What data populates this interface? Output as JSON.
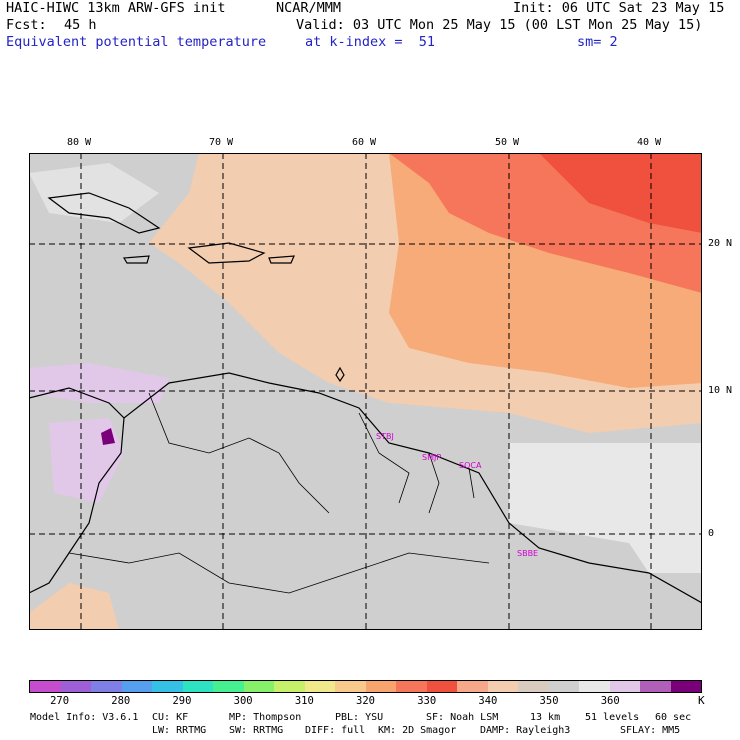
{
  "header": {
    "model": "HAIC-HIWC 13km ARW-GFS init",
    "center": "NCAR/MMM",
    "init": "Init: 06 UTC Sat 23 May 15",
    "fcst_label": "Fcst:",
    "fcst_value": "45 h",
    "valid": "Valid: 03 UTC Mon 25 May 15 (00 LST Mon 25 May 15)",
    "field": "Equivalent potential temperature",
    "level": "at k-index =  51",
    "smoothing": "sm= 2"
  },
  "axes": {
    "lon_labels": [
      "80 W",
      "70 W",
      "60 W",
      "50 W",
      "40 W"
    ],
    "lat_labels": [
      "20 N",
      "10 N",
      "0"
    ]
  },
  "stations": [
    "STBJ",
    "SMJP",
    "SOCA",
    "SBBE"
  ],
  "colorbar": {
    "colors": [
      "#c74dcf",
      "#9f5fd6",
      "#7f7fe6",
      "#569fee",
      "#35c0e6",
      "#2ee3c2",
      "#46ef8f",
      "#86f06a",
      "#c7f06a",
      "#f0e88a",
      "#f7c98a",
      "#f7a46e",
      "#f5765a",
      "#f0503e",
      "#f5a88a",
      "#f2cdb0",
      "#d8cbc0",
      "#cfcfcf",
      "#e8e8e8",
      "#e2c8e8",
      "#b060b8",
      "#7a007a"
    ],
    "labels": [
      "270",
      "280",
      "290",
      "300",
      "310",
      "320",
      "330",
      "340",
      "350",
      "360"
    ],
    "unit": "K"
  },
  "footer": {
    "line1": [
      "Model Info: V3.6.1",
      "CU: KF",
      "MP: Thompson",
      "PBL: YSU",
      "SF: Noah LSM",
      "13 km",
      "51 levels",
      "60 sec"
    ],
    "line2": [
      "LW: RRTMG",
      "SW: RRTMG",
      "DIFF: full",
      "KM: 2D Smagor",
      "DAMP: Rayleigh3",
      "SFLAY: MM5"
    ]
  },
  "colors": {
    "text_blue": "#2323c8",
    "station": "#d000d0",
    "warm": "#f5765a",
    "mid": "#f7a46e",
    "peach": "#f2cdb0",
    "gray": "#cfcfcf"
  }
}
